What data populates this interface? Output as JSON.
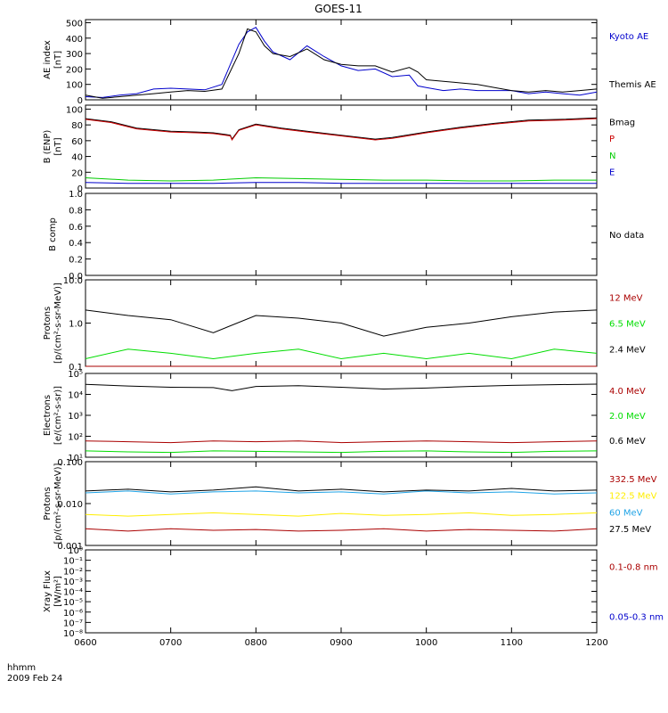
{
  "title": "GOES-11",
  "x_caption": {
    "label": "hhmm",
    "date": "2009 Feb 24"
  },
  "x_ticks": [
    "0600",
    "0700",
    "0800",
    "0900",
    "1000",
    "1100",
    "1200"
  ],
  "chart_data": [
    {
      "type": "line",
      "ylabel": [
        "AE index",
        "[nT]"
      ],
      "ylim": [
        0,
        520
      ],
      "yscale": "linear",
      "yticks": [
        0,
        100,
        200,
        300,
        400,
        500
      ],
      "series": [
        {
          "name": "Kyoto AE",
          "color": "#0000cc",
          "x": [
            6.0,
            6.2,
            6.4,
            6.6,
            6.8,
            7.0,
            7.2,
            7.4,
            7.6,
            7.8,
            7.9,
            8.0,
            8.1,
            8.2,
            8.4,
            8.6,
            8.8,
            9.0,
            9.2,
            9.4,
            9.6,
            9.8,
            9.9,
            10.0,
            10.2,
            10.4,
            10.6,
            10.8,
            11.0,
            11.2,
            11.4,
            11.6,
            11.8,
            12.0
          ],
          "y": [
            20,
            15,
            30,
            40,
            70,
            75,
            70,
            65,
            100,
            360,
            440,
            470,
            380,
            310,
            260,
            350,
            280,
            220,
            190,
            200,
            150,
            160,
            90,
            80,
            60,
            70,
            60,
            60,
            60,
            40,
            50,
            40,
            30,
            50
          ]
        },
        {
          "name": "Themis AE",
          "color": "#000000",
          "x": [
            6.0,
            6.2,
            6.4,
            6.6,
            6.8,
            7.0,
            7.2,
            7.4,
            7.6,
            7.8,
            7.9,
            8.0,
            8.1,
            8.2,
            8.4,
            8.6,
            8.8,
            9.0,
            9.2,
            9.4,
            9.6,
            9.8,
            9.9,
            10.0,
            10.2,
            10.4,
            10.6,
            10.8,
            11.0,
            11.2,
            11.4,
            11.6,
            11.8,
            12.0
          ],
          "y": [
            30,
            10,
            20,
            30,
            40,
            50,
            60,
            55,
            70,
            300,
            460,
            440,
            350,
            300,
            280,
            330,
            260,
            230,
            220,
            220,
            180,
            210,
            180,
            130,
            120,
            110,
            100,
            80,
            60,
            50,
            60,
            50,
            60,
            70
          ]
        }
      ]
    },
    {
      "type": "line",
      "ylabel": [
        "B (ENP)",
        "[nT]"
      ],
      "ylim": [
        0,
        105
      ],
      "yscale": "linear",
      "yticks": [
        0,
        20,
        40,
        60,
        80,
        100
      ],
      "series": [
        {
          "name": "Bmag",
          "color": "#000000",
          "x": [
            6.0,
            6.3,
            6.6,
            7.0,
            7.3,
            7.5,
            7.7,
            7.72,
            7.8,
            8.0,
            8.3,
            8.6,
            9.0,
            9.4,
            9.6,
            10.0,
            10.4,
            10.8,
            11.2,
            11.6,
            12.0
          ],
          "y": [
            88,
            84,
            76,
            72,
            71,
            70,
            67,
            62,
            74,
            81,
            76,
            72,
            67,
            62,
            64,
            71,
            77,
            82,
            86,
            87,
            89
          ]
        },
        {
          "name": "P",
          "color": "#cc0000",
          "x": [
            6.0,
            6.3,
            6.6,
            7.0,
            7.3,
            7.5,
            7.7,
            7.72,
            7.8,
            8.0,
            8.3,
            8.6,
            9.0,
            9.4,
            9.6,
            10.0,
            10.4,
            10.8,
            11.2,
            11.6,
            12.0
          ],
          "y": [
            87,
            83,
            75,
            71,
            70,
            69,
            66,
            61,
            73,
            80,
            75,
            71,
            66,
            61,
            63,
            70,
            76,
            81,
            85,
            86,
            88
          ]
        },
        {
          "name": "N",
          "color": "#00cc00",
          "x": [
            6.0,
            6.5,
            7.0,
            7.5,
            8.0,
            8.5,
            9.0,
            9.5,
            10.0,
            10.5,
            11.0,
            11.5,
            12.0
          ],
          "y": [
            13,
            10,
            9,
            10,
            13,
            12,
            11,
            10,
            10,
            9,
            9,
            10,
            10
          ]
        },
        {
          "name": "E",
          "color": "#0000cc",
          "x": [
            6.0,
            6.5,
            7.0,
            7.5,
            8.0,
            8.5,
            9.0,
            9.5,
            10.0,
            10.5,
            11.0,
            11.5,
            12.0
          ],
          "y": [
            7,
            6,
            6,
            6,
            7,
            7,
            6,
            6,
            6,
            6,
            6,
            6,
            6
          ]
        }
      ]
    },
    {
      "type": "line",
      "ylabel": [
        "B comp"
      ],
      "ylim": [
        0,
        1.0
      ],
      "yscale": "linear",
      "yticks": [
        0.0,
        0.2,
        0.4,
        0.6,
        0.8,
        1.0
      ],
      "tick_labels": [
        "0.0",
        "0.2",
        "0.4",
        "0.6",
        "0.8",
        "1.0"
      ],
      "note": "No data",
      "series": []
    },
    {
      "type": "line",
      "ylabel": [
        "Protons",
        "[p/(cm²-s-sr-MeV)]"
      ],
      "ylim": [
        0.1,
        10.0
      ],
      "yscale": "log",
      "yticks": [
        0.1,
        1.0,
        10.0
      ],
      "tick_labels": [
        "0.1",
        "1.0",
        "10.0"
      ],
      "series": [
        {
          "name": "12 MeV",
          "color": "#aa0000",
          "x": [
            6.0,
            6.01,
            12.0
          ],
          "y": [
            0.1,
            0.1,
            0.1
          ]
        },
        {
          "name": "6.5 MeV",
          "color": "#00dd00",
          "x": [
            6.0,
            6.5,
            7.0,
            7.5,
            8.0,
            8.5,
            9.0,
            9.5,
            10.0,
            10.5,
            11.0,
            11.5,
            12.0
          ],
          "y": [
            0.15,
            0.25,
            0.2,
            0.15,
            0.2,
            0.25,
            0.15,
            0.2,
            0.15,
            0.2,
            0.15,
            0.25,
            0.2
          ]
        },
        {
          "name": "2.4 MeV",
          "color": "#000000",
          "x": [
            6.0,
            6.5,
            7.0,
            7.5,
            8.0,
            8.5,
            9.0,
            9.5,
            10.0,
            10.5,
            11.0,
            11.5,
            12.0
          ],
          "y": [
            2.0,
            1.5,
            1.2,
            0.6,
            1.5,
            1.3,
            1.0,
            0.5,
            0.8,
            1.0,
            1.4,
            1.8,
            2.0
          ]
        }
      ]
    },
    {
      "type": "line",
      "ylabel": [
        "Electrons",
        "[e/(cm²-s-sr)]"
      ],
      "ylim": [
        10,
        100000
      ],
      "yscale": "log",
      "yticks": [
        10,
        100,
        1000,
        10000,
        100000
      ],
      "tick_labels": [
        "10¹",
        "10²",
        "10³",
        "10⁴",
        "10⁵"
      ],
      "series": [
        {
          "name": "4.0 MeV",
          "color": "#aa0000",
          "x": [
            6.0,
            6.5,
            7.0,
            7.5,
            8.0,
            8.5,
            9.0,
            9.5,
            10.0,
            10.5,
            11.0,
            11.5,
            12.0
          ],
          "y": [
            60,
            55,
            50,
            60,
            55,
            60,
            50,
            55,
            60,
            55,
            50,
            55,
            60
          ]
        },
        {
          "name": "2.0 MeV",
          "color": "#00dd00",
          "x": [
            6.0,
            6.5,
            7.0,
            7.5,
            8.0,
            8.5,
            9.0,
            9.5,
            10.0,
            10.5,
            11.0,
            11.5,
            12.0
          ],
          "y": [
            20,
            18,
            17,
            20,
            19,
            18,
            17,
            19,
            20,
            18,
            17,
            19,
            20
          ]
        },
        {
          "name": "0.6 MeV",
          "color": "#000000",
          "x": [
            6.0,
            6.5,
            7.0,
            7.5,
            7.72,
            8.0,
            8.5,
            9.0,
            9.5,
            10.0,
            10.5,
            11.0,
            11.5,
            12.0
          ],
          "y": [
            30000,
            25000,
            22000,
            21000,
            15000,
            24000,
            26000,
            22000,
            18000,
            20000,
            24000,
            27000,
            29000,
            31000
          ]
        }
      ]
    },
    {
      "type": "line",
      "ylabel": [
        "Protons",
        "[p/(cm²-s-sr-MeV)]"
      ],
      "ylim": [
        0.001,
        0.1
      ],
      "yscale": "log",
      "yticks": [
        0.001,
        0.01,
        0.1
      ],
      "tick_labels": [
        "0.001",
        "0.010",
        "0.100"
      ],
      "series": [
        {
          "name": "332.5 MeV",
          "color": "#aa0000",
          "x": [
            6.0,
            6.5,
            7.0,
            7.5,
            8.0,
            8.5,
            9.0,
            9.5,
            10.0,
            10.5,
            11.0,
            11.5,
            12.0
          ],
          "y": [
            0.0025,
            0.0022,
            0.0025,
            0.0023,
            0.0024,
            0.0022,
            0.0023,
            0.0025,
            0.0022,
            0.0024,
            0.0023,
            0.0022,
            0.0025
          ]
        },
        {
          "name": "122.5 MeV",
          "color": "#ffee00",
          "x": [
            6.0,
            6.5,
            7.0,
            7.5,
            8.0,
            8.5,
            9.0,
            9.5,
            10.0,
            10.5,
            11.0,
            11.5,
            12.0
          ],
          "y": [
            0.0055,
            0.005,
            0.0055,
            0.006,
            0.0055,
            0.005,
            0.0058,
            0.0052,
            0.0055,
            0.006,
            0.0052,
            0.0055,
            0.006
          ]
        },
        {
          "name": "60 MeV",
          "color": "#1fa3e6",
          "x": [
            6.0,
            6.5,
            7.0,
            7.5,
            8.0,
            8.5,
            9.0,
            9.5,
            10.0,
            10.5,
            11.0,
            11.5,
            12.0
          ],
          "y": [
            0.018,
            0.02,
            0.017,
            0.019,
            0.02,
            0.018,
            0.019,
            0.017,
            0.02,
            0.018,
            0.019,
            0.017,
            0.018
          ]
        },
        {
          "name": "27.5 MeV",
          "color": "#000000",
          "x": [
            6.0,
            6.5,
            7.0,
            7.5,
            8.0,
            8.5,
            9.0,
            9.5,
            10.0,
            10.5,
            11.0,
            11.5,
            12.0
          ],
          "y": [
            0.02,
            0.022,
            0.019,
            0.021,
            0.025,
            0.02,
            0.022,
            0.019,
            0.021,
            0.02,
            0.023,
            0.02,
            0.021
          ]
        }
      ]
    },
    {
      "type": "line",
      "ylabel": [
        "Xray Flux",
        "[W/m²]"
      ],
      "ylim": [
        1e-08,
        1
      ],
      "yscale": "log",
      "yticks": [
        1e-08,
        1e-07,
        1e-06,
        1e-05,
        0.0001,
        0.001,
        0.01,
        0.1,
        1
      ],
      "tick_labels": [
        "10⁻⁸",
        "10⁻⁷",
        "10⁻⁶",
        "10⁻⁵",
        "10⁻⁴",
        "10⁻³",
        "10⁻²",
        "10⁻¹",
        "10⁰"
      ],
      "legend_only": true,
      "series": [
        {
          "name": "0.1-0.8 nm",
          "color": "#aa0000",
          "x": [],
          "y": []
        },
        {
          "name": "0.05-0.3 nm",
          "color": "#0000cc",
          "x": [],
          "y": []
        }
      ]
    }
  ]
}
